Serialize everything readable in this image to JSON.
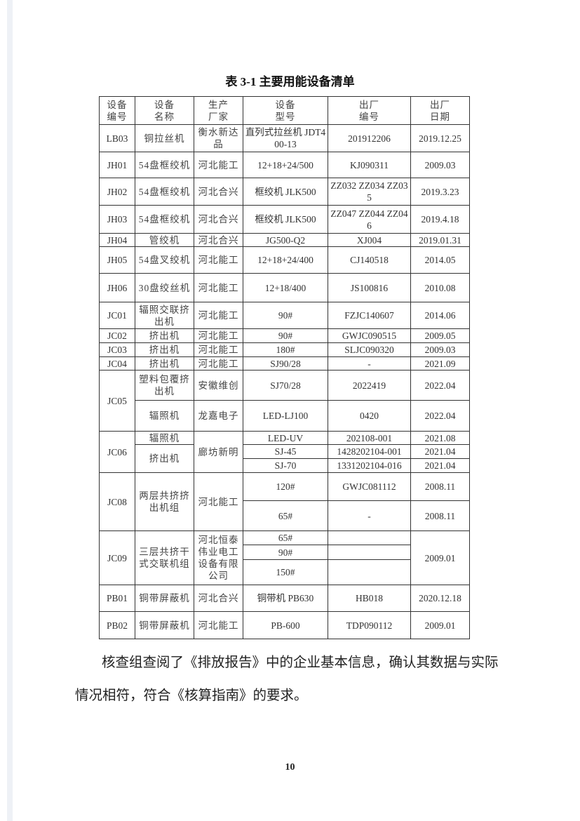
{
  "title": "表 3-1  主要用能设备清单",
  "table": {
    "headers": [
      "设备\n编号",
      "设备\n名称",
      "生产\n厂家",
      "设备\n型号",
      "出厂\n编号",
      "出厂\n日期"
    ],
    "rows": [
      [
        {
          "t": "LB03"
        },
        {
          "t": "铜拉丝机",
          "zh": true
        },
        {
          "t": "衡水新达品",
          "zh": true
        },
        {
          "t": "直列式拉丝机 JDT400-13"
        },
        {
          "t": "201912206"
        },
        {
          "t": "2019.12.25"
        }
      ],
      [
        {
          "t": "JH01"
        },
        {
          "t": "54盘框绞机",
          "zh": true
        },
        {
          "t": "河北能工",
          "zh": true
        },
        {
          "t": "12+18+24/500"
        },
        {
          "t": "KJ090311"
        },
        {
          "t": "2009.03"
        }
      ],
      [
        {
          "t": "JH02"
        },
        {
          "t": "54盘框绞机",
          "zh": true
        },
        {
          "t": "河北合兴",
          "zh": true
        },
        {
          "t": "框绞机 JLK500"
        },
        {
          "t": "ZZ032  ZZ034 ZZ035"
        },
        {
          "t": "2019.3.23"
        }
      ],
      [
        {
          "t": "JH03"
        },
        {
          "t": "54盘框绞机",
          "zh": true
        },
        {
          "t": "河北合兴",
          "zh": true
        },
        {
          "t": "框绞机 JLK500"
        },
        {
          "t": "ZZ047  ZZ044 ZZ046"
        },
        {
          "t": "2019.4.18"
        }
      ],
      [
        {
          "t": "JH04"
        },
        {
          "t": "管绞机",
          "zh": true
        },
        {
          "t": "河北合兴",
          "zh": true
        },
        {
          "t": "JG500-Q2"
        },
        {
          "t": "XJ004"
        },
        {
          "t": "2019.01.31"
        }
      ],
      [
        {
          "t": "JH05"
        },
        {
          "t": "54盘叉绞机",
          "zh": true
        },
        {
          "t": "河北能工",
          "zh": true
        },
        {
          "t": "12+18+24/400"
        },
        {
          "t": "CJ140518"
        },
        {
          "t": "2014.05"
        }
      ],
      [
        {
          "t": "JH06"
        },
        {
          "t": "30盘绞丝机",
          "zh": true
        },
        {
          "t": "河北能工",
          "zh": true
        },
        {
          "t": "12+18/400"
        },
        {
          "t": "JS100816"
        },
        {
          "t": "2010.08"
        }
      ],
      [
        {
          "t": "JC01"
        },
        {
          "t": "辐照交联挤出机",
          "zh": true
        },
        {
          "t": "河北能工",
          "zh": true
        },
        {
          "t": "90#"
        },
        {
          "t": "FZJC140607"
        },
        {
          "t": "2014.06"
        }
      ],
      [
        {
          "t": "JC02"
        },
        {
          "t": "挤出机",
          "zh": true
        },
        {
          "t": "河北能工",
          "zh": true
        },
        {
          "t": "90#"
        },
        {
          "t": "GWJC090515"
        },
        {
          "t": "2009.05"
        }
      ],
      [
        {
          "t": "JC03"
        },
        {
          "t": "挤出机",
          "zh": true
        },
        {
          "t": "河北能工",
          "zh": true
        },
        {
          "t": "180#"
        },
        {
          "t": "SLJC090320"
        },
        {
          "t": "2009.03"
        }
      ],
      [
        {
          "t": "JC04"
        },
        {
          "t": "挤出机",
          "zh": true
        },
        {
          "t": "河北能工",
          "zh": true
        },
        {
          "t": "SJ90/28"
        },
        {
          "t": "-"
        },
        {
          "t": "2021.09"
        }
      ],
      [
        {
          "t": "JC05",
          "span": 2
        },
        {
          "t": "塑料包覆挤出机",
          "zh": true
        },
        {
          "t": "安徽维创",
          "zh": true
        },
        {
          "t": "SJ70/28"
        },
        {
          "t": "2022419"
        },
        {
          "t": "2022.04"
        }
      ],
      [
        {
          "t": "辐照机",
          "zh": true
        },
        {
          "t": "龙嘉电子",
          "zh": true
        },
        {
          "t": "LED-LJ100"
        },
        {
          "t": "0420"
        },
        {
          "t": "2022.04"
        }
      ],
      [
        {
          "t": "JC06",
          "span": 3
        },
        {
          "t": "辐照机",
          "zh": true
        },
        {
          "t": "廊坊新明",
          "zh": true,
          "span": 3
        },
        {
          "t": "LED-UV"
        },
        {
          "t": "202108-001"
        },
        {
          "t": "2021.08"
        }
      ],
      [
        {
          "t": "挤出机",
          "zh": true,
          "span": 2
        },
        {
          "t": "SJ-45"
        },
        {
          "t": "1428202104-001"
        },
        {
          "t": "2021.04"
        }
      ],
      [
        {
          "t": "SJ-70"
        },
        {
          "t": "1331202104-016"
        },
        {
          "t": "2021.04"
        }
      ],
      [
        {
          "t": "JC08",
          "span": 2
        },
        {
          "t": "两层共挤挤出机组",
          "zh": true,
          "span": 2
        },
        {
          "t": "河北能工",
          "zh": true,
          "span": 2
        },
        {
          "t": "120#"
        },
        {
          "t": "GWJC081112"
        },
        {
          "t": "2008.11"
        }
      ],
      [
        {
          "t": "65#"
        },
        {
          "t": "-"
        },
        {
          "t": "2008.11"
        }
      ],
      [
        {
          "t": "JC09",
          "span": 3
        },
        {
          "t": "三层共挤干式交联机组",
          "zh": true,
          "span": 3
        },
        {
          "t": "河北恒泰伟业电工设备有限公司",
          "zh": true,
          "span": 3
        },
        {
          "t": "65#"
        },
        {
          "t": ""
        },
        {
          "t": "2009.01",
          "span": 3
        }
      ],
      [
        {
          "t": "90#"
        },
        {
          "t": ""
        }
      ],
      [
        {
          "t": "150#"
        },
        {
          "t": ""
        }
      ],
      [
        {
          "t": "PB01"
        },
        {
          "t": "铜带屏蔽机",
          "zh": true
        },
        {
          "t": "河北合兴",
          "zh": true
        },
        {
          "t": "铜带机 PB630"
        },
        {
          "t": "HB018"
        },
        {
          "t": "2020.12.18"
        }
      ],
      [
        {
          "t": "PB02"
        },
        {
          "t": "铜带屏蔽机",
          "zh": true
        },
        {
          "t": "河北能工",
          "zh": true
        },
        {
          "t": "PB-600"
        },
        {
          "t": "TDP090112"
        },
        {
          "t": "2009.01"
        }
      ]
    ]
  },
  "paragraph": "核查组查阅了《排放报告》中的企业基本信息，确认其数据与实际情况相符，符合《核算指南》的要求。",
  "page_number": "10"
}
